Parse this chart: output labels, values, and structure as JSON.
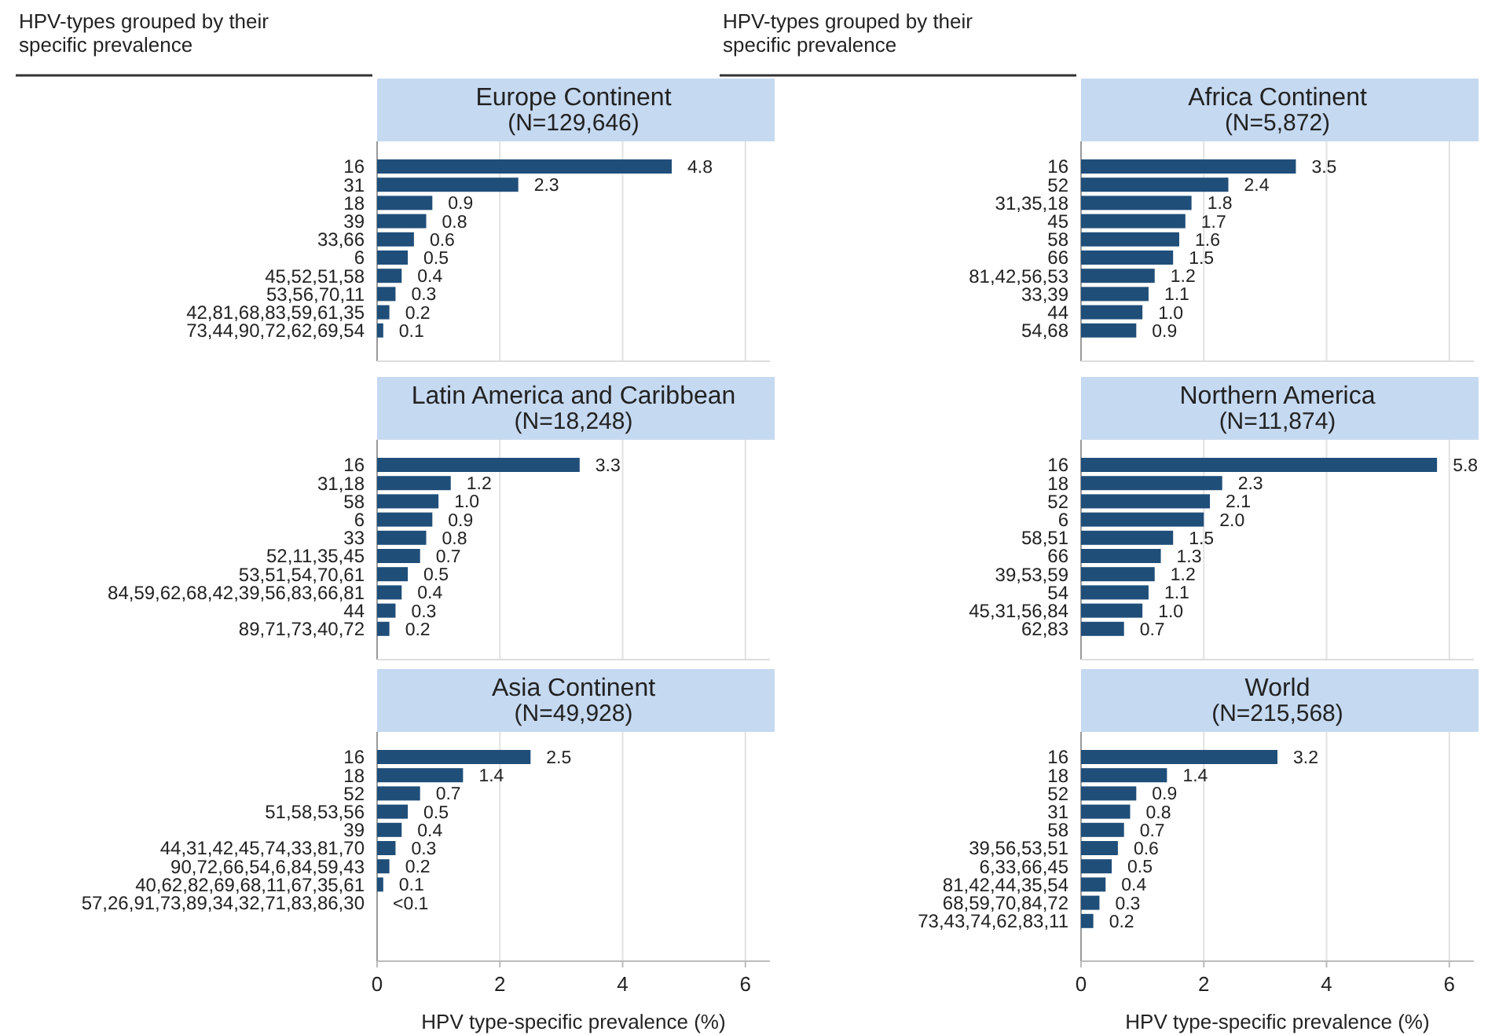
{
  "chart_data": [
    {
      "type": "bar",
      "orientation": "horizontal",
      "title": "Europe Continent",
      "subtitle": "(N=129,646)",
      "ylabel": "HPV-types grouped by their specific prevalence",
      "categories": [
        "16",
        "31",
        "18",
        "39",
        "33,66",
        "6",
        "45,52,51,58",
        "53,56,70,11",
        "42,81,68,83,59,61,35",
        "73,44,90,72,62,69,54"
      ],
      "values": [
        4.8,
        2.3,
        0.9,
        0.8,
        0.6,
        0.5,
        0.4,
        0.3,
        0.2,
        0.1
      ],
      "color": "#1f4e79",
      "data_labels": true,
      "xlim": [
        0,
        6.4
      ],
      "xticks": [
        0,
        2,
        4,
        6
      ],
      "grid": "x",
      "tick_labels": "y"
    },
    {
      "type": "bar",
      "orientation": "horizontal",
      "title": "Africa Continent",
      "subtitle": "(N=5,872)",
      "ylabel": "HPV-types grouped by their specific prevalence",
      "categories": [
        "16",
        "52",
        "31,35,18",
        "45",
        "58",
        "66",
        "81,42,56,53",
        "33,39",
        "44",
        "54,68"
      ],
      "values": [
        3.5,
        2.4,
        1.8,
        1.7,
        1.6,
        1.5,
        1.2,
        1.1,
        1.0,
        0.9
      ],
      "value_labels": [
        "3.5",
        "2.4",
        "1.8",
        "1.7",
        "1.6",
        "1.5",
        "1.2",
        "1.1",
        "1.0",
        "0.9"
      ],
      "color": "#1f4e79",
      "xlim": [
        0,
        6.4
      ],
      "xticks": [
        0,
        2,
        4,
        6
      ],
      "grid": "x",
      "tick_labels": "y"
    },
    {
      "type": "bar",
      "orientation": "horizontal",
      "title": "Latin America and Caribbean",
      "subtitle": "(N=18,248)",
      "categories": [
        "16",
        "31,18",
        "58",
        "6",
        "33",
        "52,11,35,45",
        "53,51,54,70,61",
        "84,59,62,68,42,39,56,83,66,81",
        "44",
        "89,71,73,40,72"
      ],
      "values": [
        3.3,
        1.2,
        1.0,
        0.9,
        0.8,
        0.7,
        0.5,
        0.4,
        0.3,
        0.2
      ],
      "value_labels": [
        "3.3",
        "1.2",
        "1.0",
        "0.9",
        "0.8",
        "0.7",
        "0.5",
        "0.4",
        "0.3",
        "0.2"
      ],
      "color": "#1f4e79",
      "xlim": [
        0,
        6.4
      ],
      "xticks": [
        0,
        2,
        4,
        6
      ],
      "grid": "x",
      "tick_labels": "y"
    },
    {
      "type": "bar",
      "orientation": "horizontal",
      "title": "Northern America",
      "subtitle": "(N=11,874)",
      "categories": [
        "16",
        "18",
        "52",
        "6",
        "58,51",
        "66",
        "39,53,59",
        "54",
        "45,31,56,84",
        "62,83"
      ],
      "values": [
        5.8,
        2.3,
        2.1,
        2.0,
        1.5,
        1.3,
        1.2,
        1.1,
        1.0,
        0.7
      ],
      "value_labels": [
        "5.8",
        "2.3",
        "2.1",
        "2.0",
        "1.5",
        "1.3",
        "1.2",
        "1.1",
        "1.0",
        "0.7"
      ],
      "color": "#1f4e79",
      "xlim": [
        0,
        6.4
      ],
      "xticks": [
        0,
        2,
        4,
        6
      ],
      "grid": "x",
      "tick_labels": "y"
    },
    {
      "type": "bar",
      "orientation": "horizontal",
      "title": "Asia Continent",
      "subtitle": "(N=49,928)",
      "xlabel": "HPV type-specific prevalence (%)",
      "categories": [
        "16",
        "18",
        "52",
        "51,58,53,56",
        "39",
        "44,31,42,45,74,33,81,70",
        "90,72,66,54,6,84,59,43",
        "40,62,82,69,68,11,67,35,61",
        "57,26,91,73,89,34,32,71,83,86,30"
      ],
      "values": [
        2.5,
        1.4,
        0.7,
        0.5,
        0.4,
        0.3,
        0.2,
        0.1,
        null
      ],
      "value_labels": [
        "2.5",
        "1.4",
        "0.7",
        "0.5",
        "0.4",
        "0.3",
        "0.2",
        "0.1",
        "<0.1"
      ],
      "color": "#1f4e79",
      "xlim": [
        0,
        6.4
      ],
      "xticks": [
        0,
        2,
        4,
        6
      ],
      "grid": "x"
    },
    {
      "type": "bar",
      "orientation": "horizontal",
      "title": "World",
      "subtitle": "(N=215,568)",
      "xlabel": "HPV type-specific prevalence (%)",
      "categories": [
        "16",
        "18",
        "52",
        "31",
        "58",
        "39,56,53,51",
        "6,33,66,45",
        "81,42,44,35,54",
        "68,59,70,84,72",
        "73,43,74,62,83,11"
      ],
      "values": [
        3.2,
        1.4,
        0.9,
        0.8,
        0.7,
        0.6,
        0.5,
        0.4,
        0.3,
        0.2
      ],
      "color": "#1f4e79",
      "data_labels": true,
      "xlim": [
        0,
        6.4
      ],
      "xticks": [
        0,
        2,
        4,
        6
      ],
      "grid": "x"
    }
  ]
}
